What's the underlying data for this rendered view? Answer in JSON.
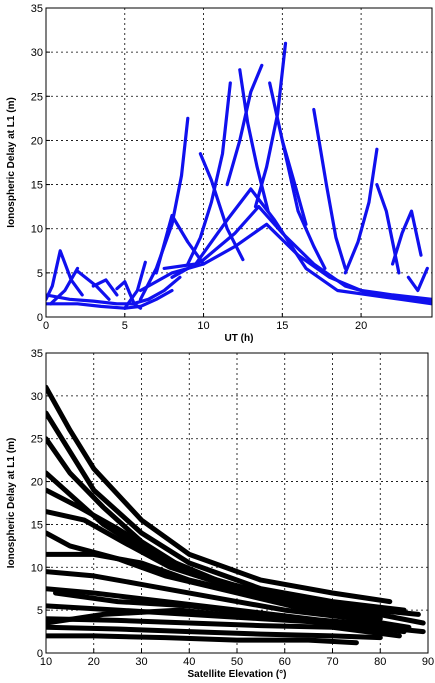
{
  "chart_data": [
    {
      "type": "line",
      "xlabel": "UT (h)",
      "ylabel": "Ionospheric Delay at L1 (m)",
      "xlim": [
        0,
        24.5
      ],
      "ylim": [
        0,
        35
      ],
      "xticks": [
        0,
        5,
        10,
        15,
        20
      ],
      "yticks": [
        0,
        5,
        10,
        15,
        20,
        25,
        30,
        35
      ],
      "grid": true,
      "color": "#1010ee",
      "note_series": "satellite passes (rise/set arcs), values approximate",
      "series": [
        {
          "x": [
            0,
            0.4,
            0.9,
            1.6,
            2.3
          ],
          "y": [
            2.0,
            3.5,
            7.5,
            4.2,
            2.5
          ]
        },
        {
          "x": [
            0.3,
            1.2,
            2.0
          ],
          "y": [
            1.5,
            3.0,
            5.5
          ]
        },
        {
          "x": [
            2.0,
            3.2,
            4.0
          ],
          "y": [
            5.2,
            3.5,
            2.0
          ]
        },
        {
          "x": [
            3.0,
            3.8,
            4.5
          ],
          "y": [
            3.5,
            4.2,
            2.5
          ]
        },
        {
          "x": [
            4.5,
            5.0,
            5.6,
            6.0
          ],
          "y": [
            3.2,
            4.0,
            1.5,
            1.0
          ]
        },
        {
          "x": [
            5.0,
            5.8,
            6.3
          ],
          "y": [
            1.0,
            3.0,
            6.2
          ]
        },
        {
          "x": [
            6.0,
            7.0,
            8.0,
            8.6,
            9.0
          ],
          "y": [
            2.0,
            5.5,
            10.5,
            16.0,
            22.5
          ]
        },
        {
          "x": [
            7.0,
            8.0,
            9.0,
            10.0
          ],
          "y": [
            5.0,
            11.5,
            8.5,
            6.0
          ]
        },
        {
          "x": [
            9.0,
            9.8,
            10.5,
            11.2,
            11.7
          ],
          "y": [
            6.0,
            9.0,
            13.0,
            18.5,
            26.5
          ]
        },
        {
          "x": [
            9.8,
            10.5,
            11.5,
            12.5
          ],
          "y": [
            18.5,
            15.5,
            10.0,
            6.5
          ]
        },
        {
          "x": [
            11.5,
            12.3,
            13.0,
            13.7
          ],
          "y": [
            15.0,
            20.0,
            25.5,
            28.5
          ]
        },
        {
          "x": [
            12.3,
            12.8,
            13.4,
            14.1
          ],
          "y": [
            28.0,
            22.0,
            17.0,
            12.0
          ]
        },
        {
          "x": [
            13.3,
            14.0,
            14.7,
            15.2
          ],
          "y": [
            12.5,
            17.0,
            23.0,
            31.0
          ]
        },
        {
          "x": [
            14.2,
            15.0,
            15.8,
            16.5
          ],
          "y": [
            26.5,
            20.0,
            15.0,
            10.5
          ]
        },
        {
          "x": [
            15.0,
            16.0,
            17.0,
            17.7
          ],
          "y": [
            20.0,
            12.0,
            8.0,
            5.5
          ]
        },
        {
          "x": [
            17.0,
            17.8,
            18.4,
            19.0
          ],
          "y": [
            23.5,
            15.0,
            9.0,
            5.5
          ]
        },
        {
          "x": [
            19.0,
            19.8,
            20.5,
            21.0
          ],
          "y": [
            5.0,
            8.5,
            13.0,
            19.0
          ]
        },
        {
          "x": [
            21.0,
            21.6,
            22.0,
            22.4
          ],
          "y": [
            15.0,
            12.0,
            8.5,
            5.0
          ]
        },
        {
          "x": [
            22.0,
            22.6,
            23.2,
            23.8
          ],
          "y": [
            6.0,
            9.5,
            12.0,
            7.0
          ]
        },
        {
          "x": [
            23.0,
            23.6,
            24.2
          ],
          "y": [
            4.5,
            3.0,
            5.5
          ]
        },
        {
          "x": [
            6.0,
            8.0,
            10.0,
            12.0,
            14.0,
            16.0,
            18.0,
            20.0,
            22.0,
            24.5
          ],
          "y": [
            3.0,
            5.0,
            6.0,
            8.0,
            10.5,
            7.0,
            4.5,
            3.0,
            2.5,
            2.0
          ]
        },
        {
          "x": [
            8.0,
            10.0,
            12.0,
            13.5,
            15.0,
            17.0,
            19.0,
            21.0,
            23.0,
            24.5
          ],
          "y": [
            4.5,
            6.5,
            9.5,
            12.5,
            9.5,
            6.0,
            3.5,
            2.5,
            2.0,
            1.8
          ]
        },
        {
          "x": [
            7.5,
            9.5,
            11.5,
            13.0,
            14.5,
            16.5,
            18.5,
            20.5,
            22.5,
            24.5
          ],
          "y": [
            5.5,
            6.0,
            11.0,
            14.5,
            11.0,
            5.5,
            3.0,
            2.5,
            2.0,
            1.5
          ]
        },
        {
          "x": [
            0,
            1.5,
            3.0,
            4.5,
            5.5,
            6.5,
            7.5,
            8.5
          ],
          "y": [
            2.5,
            2.0,
            1.8,
            1.5,
            1.5,
            2.0,
            3.0,
            4.5
          ]
        },
        {
          "x": [
            0,
            2.0,
            3.5,
            5.0,
            6.0,
            7.0,
            8.0
          ],
          "y": [
            1.5,
            1.5,
            1.2,
            1.0,
            1.2,
            2.0,
            3.0
          ]
        }
      ]
    },
    {
      "type": "scatter",
      "xlabel": "Satellite Elevation (°)",
      "ylabel": "Ionospheric Delay at L1 (m)",
      "xlim": [
        10,
        90
      ],
      "ylim": [
        0,
        35
      ],
      "xticks": [
        10,
        20,
        30,
        40,
        50,
        60,
        70,
        80,
        90
      ],
      "yticks": [
        0,
        5,
        10,
        15,
        20,
        25,
        30,
        35
      ],
      "grid": true,
      "color": "#000000",
      "note_series": "delay vs elevation traces, values approximate",
      "series": [
        {
          "x": [
            10,
            15,
            20,
            30,
            40,
            55,
            70,
            82
          ],
          "y": [
            31.0,
            26.0,
            21.5,
            15.5,
            11.5,
            8.5,
            7.0,
            6.0
          ]
        },
        {
          "x": [
            10,
            15,
            20,
            30,
            40,
            55,
            70,
            85
          ],
          "y": [
            28.0,
            23.5,
            19.0,
            14.0,
            10.5,
            7.5,
            6.0,
            5.0
          ]
        },
        {
          "x": [
            10,
            15,
            22,
            30,
            40,
            55,
            70,
            88
          ],
          "y": [
            25.0,
            21.0,
            17.0,
            13.0,
            9.5,
            7.0,
            5.5,
            4.5
          ]
        },
        {
          "x": [
            10,
            16,
            22,
            32,
            45,
            60,
            75,
            89
          ],
          "y": [
            21.0,
            18.0,
            15.0,
            11.5,
            8.5,
            6.5,
            5.0,
            3.5
          ]
        },
        {
          "x": [
            10,
            17,
            25,
            35,
            48,
            62,
            78
          ],
          "y": [
            19.0,
            17.0,
            14.5,
            11.0,
            8.0,
            6.0,
            4.5
          ]
        },
        {
          "x": [
            10,
            18,
            26,
            36,
            50,
            65,
            80
          ],
          "y": [
            16.5,
            15.5,
            13.0,
            10.0,
            7.5,
            5.5,
            4.0
          ]
        },
        {
          "x": [
            10,
            15,
            25,
            35,
            50,
            65,
            80
          ],
          "y": [
            14.0,
            12.5,
            11.0,
            9.0,
            7.0,
            5.0,
            3.5
          ]
        },
        {
          "x": [
            10,
            20,
            30,
            40,
            55,
            70,
            85
          ],
          "y": [
            11.5,
            11.5,
            10.5,
            8.5,
            6.5,
            4.5,
            3.0
          ]
        },
        {
          "x": [
            10,
            20,
            30,
            45,
            60,
            75,
            86
          ],
          "y": [
            9.5,
            9.0,
            8.0,
            6.5,
            5.0,
            4.0,
            3.0
          ]
        },
        {
          "x": [
            10,
            20,
            35,
            50,
            65,
            80,
            89
          ],
          "y": [
            7.5,
            7.0,
            6.0,
            5.0,
            4.0,
            3.0,
            2.5
          ]
        },
        {
          "x": [
            10,
            25,
            40,
            55,
            70,
            85
          ],
          "y": [
            5.5,
            5.0,
            4.5,
            4.0,
            3.5,
            2.5
          ]
        },
        {
          "x": [
            10,
            25,
            40,
            55,
            70,
            84
          ],
          "y": [
            4.0,
            3.8,
            3.5,
            3.2,
            3.0,
            2.0
          ]
        },
        {
          "x": [
            10,
            25,
            40,
            55,
            70,
            80
          ],
          "y": [
            3.0,
            2.8,
            2.5,
            2.2,
            2.0,
            1.8
          ]
        },
        {
          "x": [
            10,
            20,
            35,
            50,
            65,
            75
          ],
          "y": [
            2.0,
            2.0,
            1.8,
            1.5,
            1.5,
            1.2
          ]
        },
        {
          "x": [
            12,
            25,
            40,
            55,
            68,
            78
          ],
          "y": [
            7.0,
            6.0,
            5.5,
            4.5,
            3.5,
            3.0
          ]
        },
        {
          "x": [
            10,
            22,
            38,
            52,
            68,
            82
          ],
          "y": [
            3.5,
            4.5,
            5.0,
            4.2,
            3.8,
            3.2
          ]
        }
      ]
    }
  ]
}
